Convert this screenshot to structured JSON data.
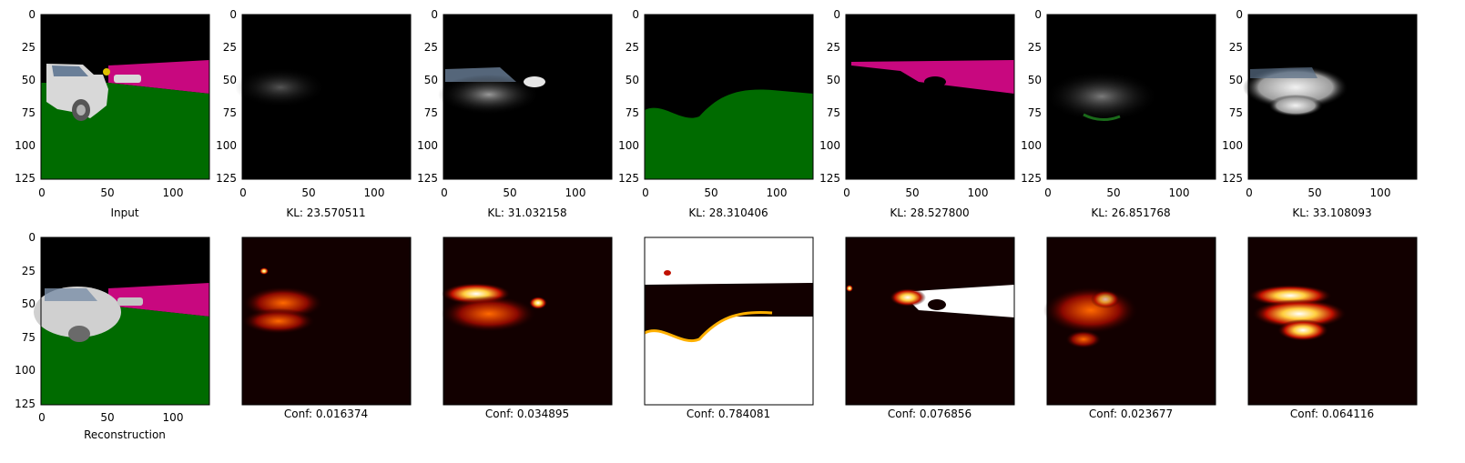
{
  "figure": {
    "top_row": {
      "tick_labels_y": [
        "0",
        "25",
        "50",
        "75",
        "100",
        "125"
      ],
      "tick_labels_x": [
        "0",
        "50",
        "100"
      ],
      "panels": [
        {
          "kind": "input",
          "caption": "Input"
        },
        {
          "kind": "slot",
          "caption": "KL: 23.570511"
        },
        {
          "kind": "slot",
          "caption": "KL: 31.032158"
        },
        {
          "kind": "slot",
          "caption": "KL: 28.310406"
        },
        {
          "kind": "slot",
          "caption": "KL: 28.527800"
        },
        {
          "kind": "slot",
          "caption": "KL: 26.851768"
        },
        {
          "kind": "slot",
          "caption": "KL: 33.108093"
        }
      ]
    },
    "bottom_row": {
      "tick_labels_y": [
        "0",
        "25",
        "50",
        "75",
        "100",
        "125"
      ],
      "tick_labels_x": [
        "0",
        "50",
        "100"
      ],
      "panels": [
        {
          "kind": "reconstruction",
          "caption": "Reconstruction"
        },
        {
          "kind": "mask",
          "caption": "Conf: 0.016374"
        },
        {
          "kind": "mask",
          "caption": "Conf: 0.034895"
        },
        {
          "kind": "mask",
          "caption": "Conf: 0.784081"
        },
        {
          "kind": "mask",
          "caption": "Conf: 0.076856"
        },
        {
          "kind": "mask",
          "caption": "Conf: 0.023677"
        },
        {
          "kind": "mask",
          "caption": "Conf: 0.064116"
        }
      ]
    },
    "colors": {
      "sky": "#000000",
      "wall": "#c8087f",
      "ground": "#006b00",
      "car": "#d8d8d8",
      "heat_low": "#120000",
      "heat_mid": "#c01000",
      "heat_high": "#ffd040",
      "heat_max": "#ffffff"
    }
  }
}
